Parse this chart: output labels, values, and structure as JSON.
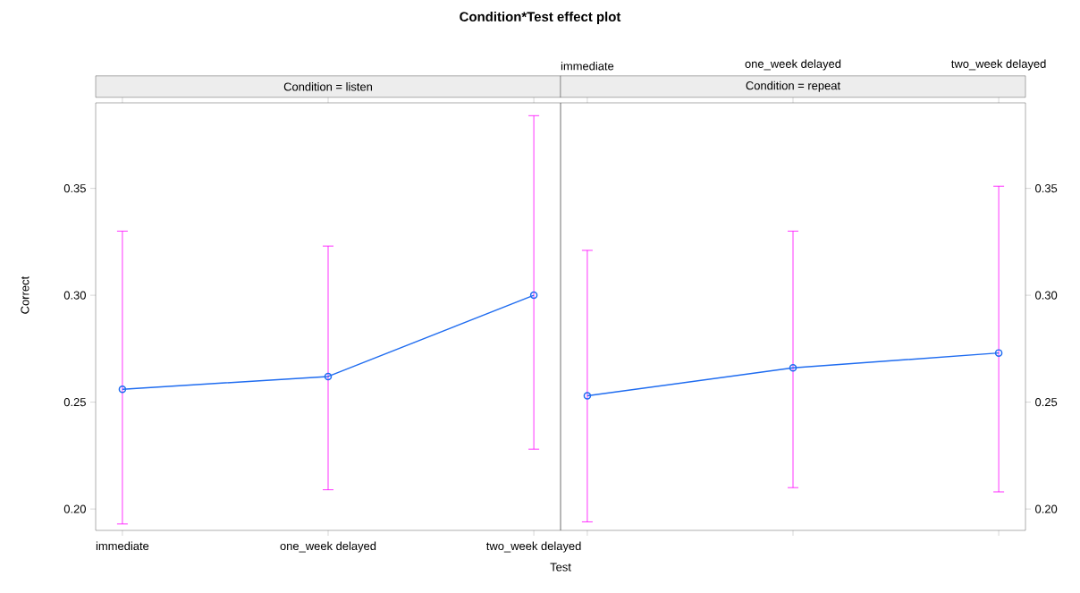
{
  "chart_data": [
    {
      "type": "line",
      "title": "Condition*Test effect plot",
      "subtitle": "Condition = listen",
      "xlabel": "Test",
      "ylabel": "Correct",
      "categories": [
        "immediate",
        "one_week delayed",
        "two_week delayed"
      ],
      "series": [
        {
          "color": "#1f6cf0",
          "values": [
            0.256,
            0.262,
            0.3
          ],
          "errors": [
            [
              0.193,
              0.33
            ],
            [
              0.209,
              0.323
            ],
            [
              0.228,
              0.384
            ]
          ]
        }
      ],
      "ylim": [
        0.19,
        0.39
      ],
      "yticks": [
        {
          "value": 0.2,
          "label": "0.20"
        },
        {
          "value": 0.25,
          "label": "0.25"
        },
        {
          "value": 0.3,
          "label": "0.30"
        },
        {
          "value": 0.35,
          "label": "0.35"
        }
      ],
      "marker": "circle",
      "line_style": "solid"
    },
    {
      "type": "line",
      "subtitle": "Condition = repeat",
      "categories": [
        "immediate",
        "one_week delayed",
        "two_week delayed"
      ],
      "series": [
        {
          "color": "#1f6cf0",
          "values": [
            0.253,
            0.266,
            0.273
          ],
          "errors": [
            [
              0.194,
              0.321
            ],
            [
              0.21,
              0.33
            ],
            [
              0.208,
              0.351
            ]
          ]
        }
      ],
      "ylim": [
        0.19,
        0.39
      ],
      "yticks": [
        {
          "value": 0.2,
          "label": "0.20"
        },
        {
          "value": 0.25,
          "label": "0.25"
        },
        {
          "value": 0.3,
          "label": "0.30"
        },
        {
          "value": 0.35,
          "label": "0.35"
        }
      ],
      "marker": "circle",
      "line_style": "solid"
    }
  ]
}
